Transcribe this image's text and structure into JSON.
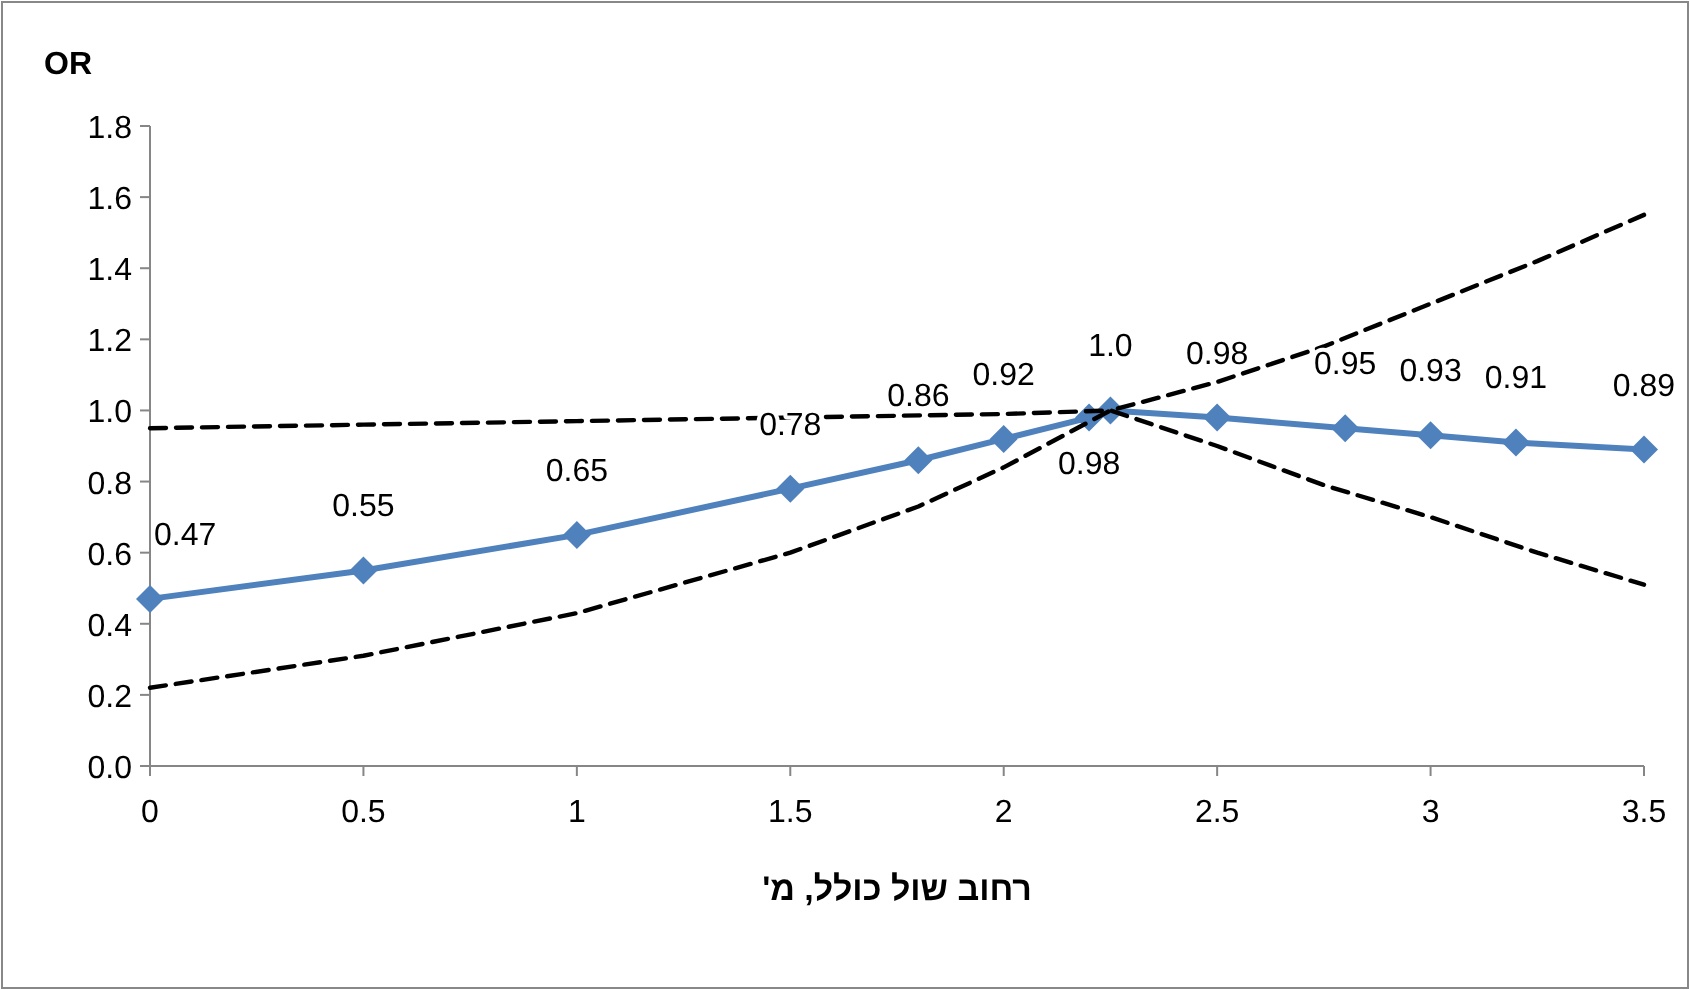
{
  "chart_data": {
    "type": "line",
    "ylabel": "OR",
    "xlabel": "רחוב שול כולל, מ'",
    "xlim": [
      0,
      3.5
    ],
    "xticks": [
      0,
      0.5,
      1,
      1.5,
      2,
      2.5,
      3,
      3.5
    ],
    "ylim": [
      0,
      1.8
    ],
    "yticks": [
      {
        "value": 0,
        "label": "0.0"
      },
      {
        "value": 0.2,
        "label": "0.2"
      },
      {
        "value": 0.4,
        "label": "0.4"
      },
      {
        "value": 0.6,
        "label": "0.6"
      },
      {
        "value": 0.8,
        "label": "0.8"
      },
      {
        "value": 1,
        "label": "1.0"
      },
      {
        "value": 1.2,
        "label": "1.2"
      },
      {
        "value": 1.4,
        "label": "1.4"
      },
      {
        "value": 1.6,
        "label": "1.6"
      },
      {
        "value": 1.8,
        "label": "1.8"
      }
    ],
    "grid": false,
    "series": [
      {
        "color": "#4f81bd",
        "marker": "diamond",
        "line_style": "solid",
        "x": [
          0,
          0.5,
          1,
          1.5,
          1.8,
          2,
          2.2,
          2.25,
          2.5,
          2.8,
          3,
          3.2,
          3.5
        ],
        "values": [
          0.47,
          0.55,
          0.65,
          0.78,
          0.86,
          0.92,
          0.98,
          1.0,
          0.98,
          0.95,
          0.93,
          0.91,
          0.89
        ],
        "value_labels": [
          "0.47",
          "0.55",
          "0.65",
          "0.78",
          "0.86",
          "0.92",
          "0.98",
          "1.0",
          "0.98",
          "0.95",
          "0.93",
          "0.91",
          "0.89"
        ]
      },
      {
        "color": "#000000",
        "marker": "none",
        "line_style": "dashed",
        "x": [
          0,
          0.5,
          1,
          1.5,
          2,
          2.25,
          2.5,
          2.75,
          3,
          3.25,
          3.5
        ],
        "values": [
          0.95,
          0.96,
          0.97,
          0.98,
          0.99,
          1.0,
          0.9,
          0.79,
          0.7,
          0.6,
          0.51
        ]
      },
      {
        "color": "#000000",
        "marker": "none",
        "line_style": "dashed",
        "x": [
          0,
          0.5,
          1,
          1.5,
          1.8,
          2,
          2.25,
          2.5,
          2.75,
          3,
          3.25,
          3.5
        ],
        "values": [
          0.22,
          0.31,
          0.43,
          0.6,
          0.73,
          0.84,
          1.0,
          1.08,
          1.18,
          1.3,
          1.42,
          1.55
        ]
      }
    ]
  }
}
